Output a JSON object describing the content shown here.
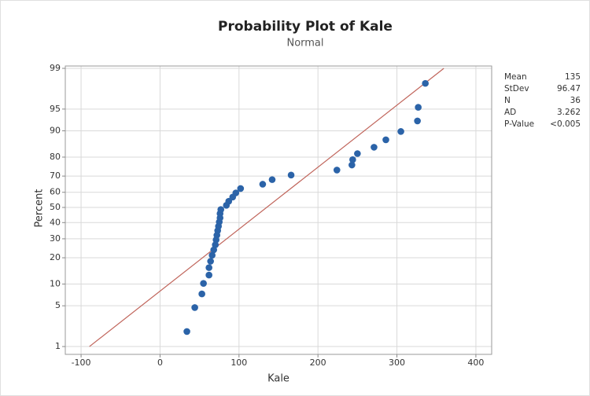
{
  "chart_data": {
    "type": "probability-plot",
    "title": "Probability Plot of Kale",
    "subtitle": "Normal",
    "x_label": "Kale",
    "y_label": "Percent",
    "y_scale": "normal-probability",
    "xlim": [
      -120,
      420
    ],
    "xticks": [
      -100,
      0,
      100,
      200,
      300,
      400
    ],
    "ylim": [
      0.7,
      99.1
    ],
    "yticks": [
      1,
      5,
      10,
      20,
      30,
      40,
      50,
      60,
      70,
      80,
      90,
      95,
      99
    ],
    "grid": true,
    "point_color": "#2b63a8",
    "line_color": "#c0645a",
    "series": [
      {
        "name": "Kale",
        "x": [
          34,
          44,
          53,
          55,
          62,
          62,
          64,
          66,
          68,
          70,
          71,
          72,
          73,
          74,
          75,
          76,
          76,
          77,
          84,
          87,
          92,
          96,
          102,
          130,
          142,
          166,
          224,
          243,
          244,
          250,
          271,
          286,
          305,
          326,
          327,
          336
        ],
        "values": [
          1.9,
          4.7,
          7.4,
          10.2,
          12.9,
          15.7,
          18.4,
          21.2,
          23.9,
          26.6,
          29.4,
          32.1,
          34.9,
          37.6,
          40.4,
          43.1,
          45.9,
          48.6,
          51.4,
          54.1,
          56.9,
          59.6,
          62.4,
          65.1,
          67.9,
          70.6,
          73.4,
          76.1,
          78.8,
          81.6,
          84.3,
          87.1,
          89.8,
          92.6,
          95.3,
          98.1
        ]
      }
    ],
    "stats": [
      {
        "label": "Mean",
        "value": 135
      },
      {
        "label": "StDev",
        "value": 96.47
      },
      {
        "label": "N",
        "value": 36
      },
      {
        "label": "AD",
        "value": 3.262
      },
      {
        "label": "P-Value",
        "value": "<0.005"
      }
    ]
  }
}
